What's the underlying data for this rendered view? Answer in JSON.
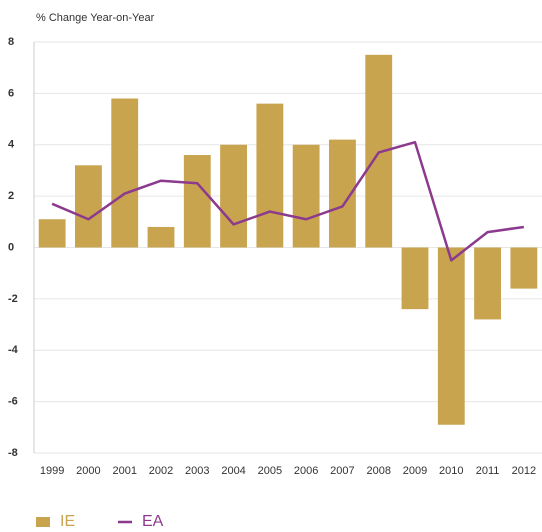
{
  "chart_data": {
    "type": "bar",
    "y_label": "% Change Year-on-Year",
    "categories": [
      "1999",
      "2000",
      "2001",
      "2002",
      "2003",
      "2004",
      "2005",
      "2006",
      "2007",
      "2008",
      "2009",
      "2010",
      "2011",
      "2012"
    ],
    "series": [
      {
        "name": "IE",
        "type": "bar",
        "color": "#c8a44f",
        "values": [
          1.1,
          3.2,
          5.8,
          0.8,
          3.6,
          4.0,
          5.6,
          4.0,
          4.2,
          7.5,
          -2.4,
          -6.9,
          -2.8,
          -1.6
        ]
      },
      {
        "name": "EA",
        "type": "line",
        "color": "#8c3a8e",
        "values": [
          1.7,
          1.1,
          2.1,
          2.6,
          2.5,
          0.9,
          1.4,
          1.1,
          1.6,
          3.7,
          4.1,
          -0.5,
          0.6,
          0.8
        ]
      }
    ],
    "ylim": [
      -8,
      8
    ],
    "yticks": [
      -8,
      -6,
      -4,
      -2,
      0,
      2,
      4,
      6,
      8
    ],
    "grid": true,
    "legend": "bottom-left"
  }
}
